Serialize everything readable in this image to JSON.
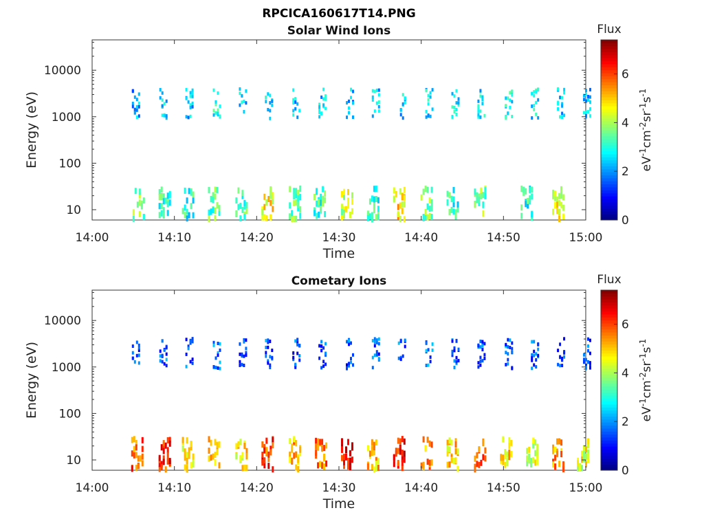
{
  "figure": {
    "filename": "RPCICA160617T14.PNG"
  },
  "chart_data": [
    {
      "type": "heatmap",
      "title": "Solar Wind Ions",
      "xlabel": "Time",
      "ylabel": "Energy (eV)",
      "x_ticks": [
        "14:00",
        "14:10",
        "14:20",
        "14:30",
        "14:40",
        "14:50",
        "15:00"
      ],
      "xlim": [
        "14:00",
        "15:00"
      ],
      "y_scale": "log",
      "ylim": [
        6,
        45000
      ],
      "y_ticks": [
        "10",
        "100",
        "1000",
        "10000"
      ],
      "colorbar": {
        "label_top": "Flux",
        "label_unit": "eV-1cm-2sr-1s-1",
        "range": [
          0,
          7.4
        ],
        "ticks": [
          "0",
          "2",
          "4",
          "6"
        ]
      },
      "bursts": [
        {
          "t": "14:05:20",
          "band": "high",
          "flux": 2.0
        },
        {
          "t": "14:08:40",
          "band": "high",
          "flux": 2.6
        },
        {
          "t": "14:11:50",
          "band": "high",
          "flux": 2.4
        },
        {
          "t": "14:15:10",
          "band": "high",
          "flux": 2.8
        },
        {
          "t": "14:18:20",
          "band": "high",
          "flux": 2.4
        },
        {
          "t": "14:21:30",
          "band": "high",
          "flux": 2.6
        },
        {
          "t": "14:24:50",
          "band": "high",
          "flux": 2.3
        },
        {
          "t": "14:28:00",
          "band": "high",
          "flux": 2.5
        },
        {
          "t": "14:31:20",
          "band": "high",
          "flux": 2.2
        },
        {
          "t": "14:34:30",
          "band": "high",
          "flux": 2.4
        },
        {
          "t": "14:37:40",
          "band": "high",
          "flux": 2.5
        },
        {
          "t": "14:41:00",
          "band": "high",
          "flux": 2.6
        },
        {
          "t": "14:44:10",
          "band": "high",
          "flux": 2.7
        },
        {
          "t": "14:47:20",
          "band": "high",
          "flux": 2.5
        },
        {
          "t": "14:50:40",
          "band": "high",
          "flux": 2.8
        },
        {
          "t": "14:53:50",
          "band": "high",
          "flux": 2.6
        },
        {
          "t": "14:57:00",
          "band": "high",
          "flux": 2.4
        },
        {
          "t": "15:00:10",
          "band": "high",
          "flux": 2.3
        },
        {
          "t": "14:05:40",
          "band": "low",
          "flux": 3.6
        },
        {
          "t": "14:08:50",
          "band": "low",
          "flux": 3.2
        },
        {
          "t": "14:11:40",
          "band": "low",
          "flux": 3.0
        },
        {
          "t": "14:14:50",
          "band": "low",
          "flux": 3.4
        },
        {
          "t": "14:18:10",
          "band": "low",
          "flux": 3.3
        },
        {
          "t": "14:21:20",
          "band": "low",
          "flux": 4.6
        },
        {
          "t": "14:24:40",
          "band": "low",
          "flux": 3.5
        },
        {
          "t": "14:27:40",
          "band": "low",
          "flux": 3.2
        },
        {
          "t": "14:31:00",
          "band": "low",
          "flux": 4.2
        },
        {
          "t": "14:34:10",
          "band": "low",
          "flux": 3.1
        },
        {
          "t": "14:37:20",
          "band": "low",
          "flux": 4.8
        },
        {
          "t": "14:40:40",
          "band": "low",
          "flux": 3.6
        },
        {
          "t": "14:43:50",
          "band": "low",
          "flux": 3.0
        },
        {
          "t": "14:47:10",
          "band": "low",
          "flux": 3.6
        },
        {
          "t": "14:52:50",
          "band": "low",
          "flux": 3.0
        },
        {
          "t": "14:56:40",
          "band": "low",
          "flux": 4.5
        }
      ]
    },
    {
      "type": "heatmap",
      "title": "Cometary Ions",
      "xlabel": "Time",
      "ylabel": "Energy (eV)",
      "x_ticks": [
        "14:00",
        "14:10",
        "14:20",
        "14:30",
        "14:40",
        "14:50",
        "15:00"
      ],
      "xlim": [
        "14:00",
        "15:00"
      ],
      "y_scale": "log",
      "ylim": [
        6,
        45000
      ],
      "y_ticks": [
        "10",
        "100",
        "1000",
        "10000"
      ],
      "colorbar": {
        "label_top": "Flux",
        "label_unit": "eV-1cm-2sr-1s-1",
        "range": [
          0,
          7.4
        ],
        "ticks": [
          "0",
          "2",
          "4",
          "6"
        ]
      },
      "bursts": [
        {
          "t": "14:05:20",
          "band": "high",
          "flux": 1.4
        },
        {
          "t": "14:08:40",
          "band": "high",
          "flux": 1.6
        },
        {
          "t": "14:11:50",
          "band": "high",
          "flux": 1.5
        },
        {
          "t": "14:15:10",
          "band": "high",
          "flux": 1.7
        },
        {
          "t": "14:18:20",
          "band": "high",
          "flux": 1.5
        },
        {
          "t": "14:21:30",
          "band": "high",
          "flux": 1.6
        },
        {
          "t": "14:24:50",
          "band": "high",
          "flux": 1.4
        },
        {
          "t": "14:28:00",
          "band": "high",
          "flux": 1.6
        },
        {
          "t": "14:31:20",
          "band": "high",
          "flux": 1.5
        },
        {
          "t": "14:34:30",
          "band": "high",
          "flux": 1.5
        },
        {
          "t": "14:37:40",
          "band": "high",
          "flux": 1.6
        },
        {
          "t": "14:41:00",
          "band": "high",
          "flux": 1.7
        },
        {
          "t": "14:44:10",
          "band": "high",
          "flux": 1.5
        },
        {
          "t": "14:47:20",
          "band": "high",
          "flux": 1.6
        },
        {
          "t": "14:50:40",
          "band": "high",
          "flux": 1.7
        },
        {
          "t": "14:53:50",
          "band": "high",
          "flux": 1.5
        },
        {
          "t": "14:57:00",
          "band": "high",
          "flux": 1.4
        },
        {
          "t": "15:00:10",
          "band": "high",
          "flux": 1.5
        },
        {
          "t": "14:05:30",
          "band": "low",
          "flux": 5.8
        },
        {
          "t": "14:08:50",
          "band": "low",
          "flux": 6.2
        },
        {
          "t": "14:11:40",
          "band": "low",
          "flux": 4.6
        },
        {
          "t": "14:14:50",
          "band": "low",
          "flux": 5.0
        },
        {
          "t": "14:18:10",
          "band": "low",
          "flux": 4.8
        },
        {
          "t": "14:21:20",
          "band": "low",
          "flux": 6.0
        },
        {
          "t": "14:24:40",
          "band": "low",
          "flux": 5.2
        },
        {
          "t": "14:27:50",
          "band": "low",
          "flux": 5.6
        },
        {
          "t": "14:31:00",
          "band": "low",
          "flux": 6.6
        },
        {
          "t": "14:34:10",
          "band": "low",
          "flux": 5.0
        },
        {
          "t": "14:37:20",
          "band": "low",
          "flux": 6.4
        },
        {
          "t": "14:40:40",
          "band": "low",
          "flux": 5.4
        },
        {
          "t": "14:43:50",
          "band": "low",
          "flux": 5.0
        },
        {
          "t": "14:47:10",
          "band": "low",
          "flux": 5.6
        },
        {
          "t": "14:50:20",
          "band": "low",
          "flux": 4.8
        },
        {
          "t": "14:53:30",
          "band": "low",
          "flux": 4.2
        },
        {
          "t": "14:56:40",
          "band": "low",
          "flux": 5.4
        },
        {
          "t": "14:59:40",
          "band": "low",
          "flux": 4.4
        }
      ]
    }
  ]
}
